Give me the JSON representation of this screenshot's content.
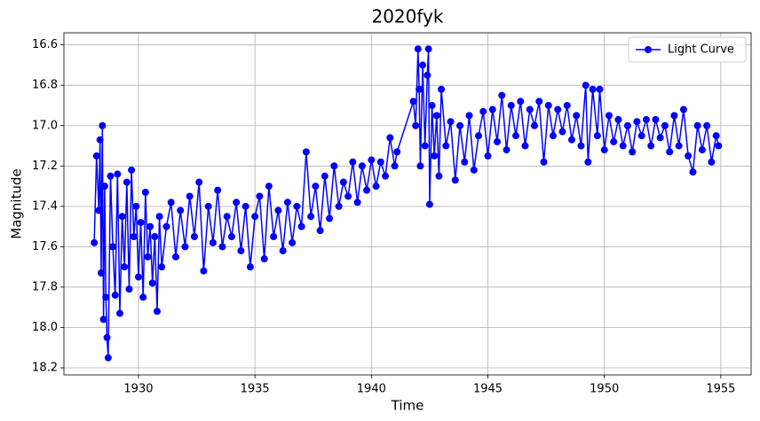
{
  "chart_data": {
    "type": "line",
    "title": "2020fyk",
    "x_label": "Time",
    "y_label": "Magnitude",
    "x": [
      1928.1,
      1928.2,
      1928.3,
      1928.35,
      1928.4,
      1928.45,
      1928.5,
      1928.55,
      1928.6,
      1928.65,
      1928.7,
      1928.8,
      1928.9,
      1929.0,
      1929.1,
      1929.2,
      1929.3,
      1929.4,
      1929.5,
      1929.6,
      1929.7,
      1929.8,
      1929.9,
      1930.0,
      1930.1,
      1930.2,
      1930.3,
      1930.4,
      1930.5,
      1930.6,
      1930.7,
      1930.8,
      1930.9,
      1931.0,
      1931.2,
      1931.4,
      1931.6,
      1931.8,
      1932.0,
      1932.2,
      1932.4,
      1932.6,
      1932.8,
      1933.0,
      1933.2,
      1933.4,
      1933.6,
      1933.8,
      1934.0,
      1934.2,
      1934.4,
      1934.6,
      1934.8,
      1935.0,
      1935.2,
      1935.4,
      1935.6,
      1935.8,
      1936.0,
      1936.2,
      1936.4,
      1936.6,
      1936.8,
      1937.0,
      1937.2,
      1937.4,
      1937.6,
      1937.8,
      1938.0,
      1938.2,
      1938.4,
      1938.6,
      1938.8,
      1939.0,
      1939.2,
      1939.4,
      1939.6,
      1939.8,
      1940.0,
      1940.2,
      1940.4,
      1940.6,
      1940.8,
      1941.0,
      1941.1,
      1941.8,
      1941.9,
      1942.0,
      1942.05,
      1942.1,
      1942.2,
      1942.3,
      1942.4,
      1942.45,
      1942.5,
      1942.6,
      1942.7,
      1942.8,
      1942.9,
      1943.0,
      1943.2,
      1943.4,
      1943.6,
      1943.8,
      1944.0,
      1944.2,
      1944.4,
      1944.6,
      1944.8,
      1945.0,
      1945.2,
      1945.4,
      1945.6,
      1945.8,
      1946.0,
      1946.2,
      1946.4,
      1946.6,
      1946.8,
      1947.0,
      1947.2,
      1947.4,
      1947.6,
      1947.8,
      1948.0,
      1948.2,
      1948.4,
      1948.6,
      1948.8,
      1949.0,
      1949.2,
      1949.3,
      1949.5,
      1949.7,
      1949.8,
      1950.0,
      1950.2,
      1950.4,
      1950.6,
      1950.8,
      1951.0,
      1951.2,
      1951.4,
      1951.6,
      1951.8,
      1952.0,
      1952.2,
      1952.4,
      1952.6,
      1952.8,
      1953.0,
      1953.2,
      1953.4,
      1953.6,
      1953.8,
      1954.0,
      1954.2,
      1954.4,
      1954.6,
      1954.8,
      1954.9
    ],
    "series": [
      {
        "name": "Light Curve",
        "color": "#0000ff",
        "values": [
          17.58,
          17.15,
          17.42,
          17.07,
          17.73,
          17.0,
          17.96,
          17.3,
          17.85,
          18.05,
          18.15,
          17.25,
          17.6,
          17.84,
          17.24,
          17.93,
          17.45,
          17.7,
          17.28,
          17.81,
          17.22,
          17.55,
          17.4,
          17.75,
          17.48,
          17.85,
          17.33,
          17.65,
          17.5,
          17.78,
          17.55,
          17.92,
          17.45,
          17.7,
          17.5,
          17.38,
          17.65,
          17.42,
          17.6,
          17.35,
          17.55,
          17.28,
          17.72,
          17.4,
          17.58,
          17.32,
          17.6,
          17.45,
          17.55,
          17.38,
          17.62,
          17.4,
          17.7,
          17.45,
          17.35,
          17.66,
          17.3,
          17.55,
          17.42,
          17.62,
          17.38,
          17.58,
          17.4,
          17.5,
          17.13,
          17.45,
          17.3,
          17.52,
          17.25,
          17.46,
          17.2,
          17.4,
          17.28,
          17.35,
          17.18,
          17.38,
          17.2,
          17.32,
          17.17,
          17.3,
          17.18,
          17.25,
          17.06,
          17.2,
          17.13,
          16.88,
          17.0,
          16.62,
          16.82,
          17.2,
          16.7,
          17.1,
          16.75,
          16.62,
          17.39,
          16.9,
          17.15,
          16.95,
          17.25,
          16.82,
          17.1,
          16.98,
          17.27,
          17.0,
          17.18,
          16.95,
          17.22,
          17.05,
          16.93,
          17.15,
          16.92,
          17.08,
          16.85,
          17.12,
          16.9,
          17.05,
          16.88,
          17.1,
          16.92,
          17.0,
          16.88,
          17.18,
          16.9,
          17.05,
          16.92,
          17.03,
          16.9,
          17.07,
          16.95,
          17.1,
          16.8,
          17.18,
          16.82,
          17.05,
          16.82,
          17.12,
          16.95,
          17.08,
          16.97,
          17.1,
          17.0,
          17.13,
          16.98,
          17.05,
          16.97,
          17.1,
          16.97,
          17.06,
          17.0,
          17.13,
          16.95,
          17.1,
          16.92,
          17.15,
          17.23,
          17.0,
          17.12,
          17.0,
          17.18,
          17.05,
          17.1
        ]
      }
    ],
    "xlim": [
      1926.8,
      1956.3
    ],
    "xticks": [
      1930,
      1935,
      1940,
      1945,
      1950,
      1955
    ],
    "ylim": [
      18.235,
      16.54
    ],
    "yticks": [
      16.6,
      16.8,
      {
        "value": 17,
        "label": "17.0"
      },
      17.2,
      17.4,
      17.6,
      17.8,
      {
        "value": 18,
        "label": "18.0"
      },
      18.2
    ],
    "grid": true,
    "legend": "upper right"
  }
}
